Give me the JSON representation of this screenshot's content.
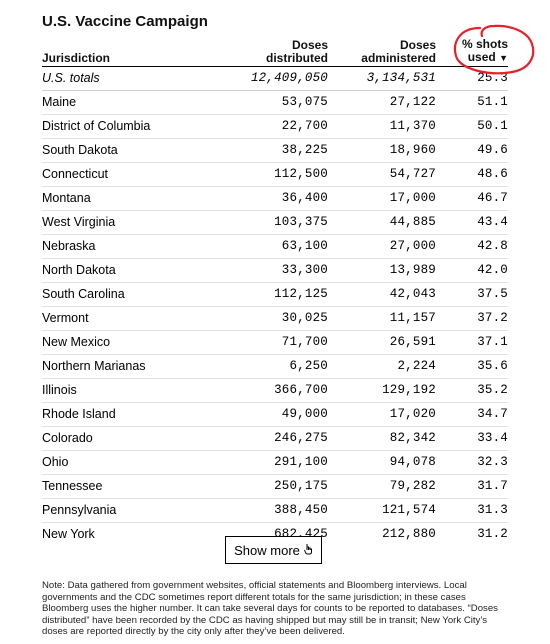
{
  "title": "U.S. Vaccine Campaign",
  "columns": {
    "jurisdiction": "Jurisdiction",
    "distributed_line1": "Doses",
    "distributed_line2": "distributed",
    "administered_line1": "Doses",
    "administered_line2": "administered",
    "pct_line1": "% shots",
    "pct_line2": "used",
    "sort_indicator": "▼"
  },
  "totals": {
    "jurisdiction": "U.S. totals",
    "distributed": "12,409,050",
    "administered": "3,134,531",
    "pct": "25.3"
  },
  "rows": [
    {
      "jurisdiction": "Maine",
      "distributed": "53,075",
      "administered": "27,122",
      "pct": "51.1"
    },
    {
      "jurisdiction": "District of Columbia",
      "distributed": "22,700",
      "administered": "11,370",
      "pct": "50.1"
    },
    {
      "jurisdiction": "South Dakota",
      "distributed": "38,225",
      "administered": "18,960",
      "pct": "49.6"
    },
    {
      "jurisdiction": "Connecticut",
      "distributed": "112,500",
      "administered": "54,727",
      "pct": "48.6"
    },
    {
      "jurisdiction": "Montana",
      "distributed": "36,400",
      "administered": "17,000",
      "pct": "46.7"
    },
    {
      "jurisdiction": "West Virginia",
      "distributed": "103,375",
      "administered": "44,885",
      "pct": "43.4"
    },
    {
      "jurisdiction": "Nebraska",
      "distributed": "63,100",
      "administered": "27,000",
      "pct": "42.8"
    },
    {
      "jurisdiction": "North Dakota",
      "distributed": "33,300",
      "administered": "13,989",
      "pct": "42.0"
    },
    {
      "jurisdiction": "South Carolina",
      "distributed": "112,125",
      "administered": "42,043",
      "pct": "37.5"
    },
    {
      "jurisdiction": "Vermont",
      "distributed": "30,025",
      "administered": "11,157",
      "pct": "37.2"
    },
    {
      "jurisdiction": "New Mexico",
      "distributed": "71,700",
      "administered": "26,591",
      "pct": "37.1"
    },
    {
      "jurisdiction": "Northern Marianas",
      "distributed": "6,250",
      "administered": "2,224",
      "pct": "35.6"
    },
    {
      "jurisdiction": "Illinois",
      "distributed": "366,700",
      "administered": "129,192",
      "pct": "35.2"
    },
    {
      "jurisdiction": "Rhode Island",
      "distributed": "49,000",
      "administered": "17,020",
      "pct": "34.7"
    },
    {
      "jurisdiction": "Colorado",
      "distributed": "246,275",
      "administered": "82,342",
      "pct": "33.4"
    },
    {
      "jurisdiction": "Ohio",
      "distributed": "291,100",
      "administered": "94,078",
      "pct": "32.3"
    },
    {
      "jurisdiction": "Tennessee",
      "distributed": "250,175",
      "administered": "79,282",
      "pct": "31.7"
    },
    {
      "jurisdiction": "Pennsylvania",
      "distributed": "388,450",
      "administered": "121,574",
      "pct": "31.3"
    },
    {
      "jurisdiction": "New York",
      "distributed": "682,425",
      "administered": "212,880",
      "pct": "31.2"
    }
  ],
  "show_more_label": "Show more",
  "show_more_icon": "hand-pointer-icon",
  "annotation_color": "#e8202a",
  "note": "Note: Data gathered from government websites, official statements and Bloomberg interviews. Local governments and the CDC sometimes report different totals for the same jurisdiction; in these cases Bloomberg uses the higher number. It can take several days for counts to be reported to databases. “Doses distributed” have been recorded by the CDC as having shipped but may still be in transit; New York City’s doses are reported directly by the city only after they’ve been delivered."
}
